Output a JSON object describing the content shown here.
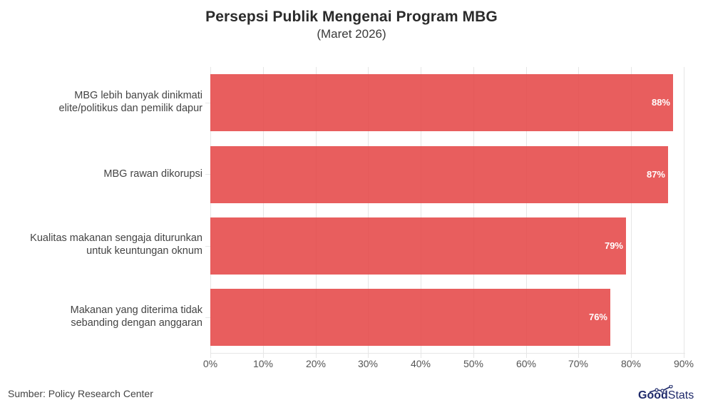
{
  "header": {
    "title": "Persepsi Publik Mengenai Program MBG",
    "subtitle": "(Maret 2026)"
  },
  "chart_data": {
    "type": "bar",
    "orientation": "horizontal",
    "title": "Persepsi Publik Mengenai Program MBG",
    "subtitle": "(Maret 2026)",
    "categories": [
      "MBG lebih banyak dinikmati elite/politikus dan pemilik dapur",
      "MBG rawan dikorupsi",
      "Kualitas makanan sengaja diturunkan untuk keuntungan oknum",
      "Makanan yang diterima tidak sebanding dengan anggaran"
    ],
    "category_lines": [
      [
        "MBG lebih banyak dinikmati",
        "elite/politikus dan pemilik dapur"
      ],
      [
        "MBG rawan dikorupsi"
      ],
      [
        "Kualitas makanan sengaja diturunkan",
        "untuk keuntungan oknum"
      ],
      [
        "Makanan yang diterima tidak",
        "sebanding dengan anggaran"
      ]
    ],
    "values": [
      88,
      87,
      79,
      76
    ],
    "value_labels": [
      "88%",
      "87%",
      "79%",
      "76%"
    ],
    "xlabel": "",
    "ylabel": "",
    "xlim": [
      0,
      90
    ],
    "x_ticks": [
      "0%",
      "10%",
      "20%",
      "30%",
      "40%",
      "50%",
      "60%",
      "70%",
      "80%",
      "90%"
    ],
    "grid": "vertical",
    "legend": "none",
    "bar_color": "#e55a5a"
  },
  "footer": {
    "source": "Sumber: Policy Research Center",
    "logo_good": "Good",
    "logo_stats": "Stats",
    "logo_color": "#1f2a6b"
  }
}
